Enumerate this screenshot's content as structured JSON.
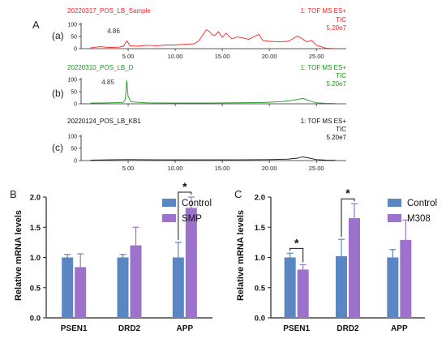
{
  "panel_a": {
    "letter": "A",
    "sublabels": [
      "(a)",
      "(b)",
      "(c)"
    ],
    "traces": [
      {
        "sample": "20220317_POS_LB_Sample",
        "mode": "1: TOF MS ES+",
        "detector": "TIC",
        "intensity": "5.20e7",
        "peak_label": "4.86",
        "color": "#ff2020"
      },
      {
        "sample": "20220310_POS_LB_D",
        "mode": "1: TOF MS ES+",
        "detector": "TIC",
        "intensity": "5.20e7",
        "peak_label": "4.85",
        "color": "#1a9a1a"
      },
      {
        "sample": "20220124_POS_LB_KB1",
        "mode": "1: TOF MS ES+",
        "detector": "TIC",
        "intensity": "5.20e7",
        "peak_label": "",
        "color": "#111111"
      }
    ]
  },
  "panel_b": {
    "letter": "B",
    "significance": "*",
    "colors": {
      "control": "#5a86c4",
      "treatment": "#9c72cc"
    }
  },
  "panel_c": {
    "letter": "C",
    "significance": "*",
    "colors": {
      "control": "#5a86c4",
      "treatment": "#9c72cc"
    }
  },
  "chart_data": [
    {
      "type": "line",
      "panel": "A(a)",
      "xlabel": "",
      "ylabel": "",
      "xlim": [
        0,
        28
      ],
      "ylim": [
        0,
        100
      ],
      "xticks": [
        "5.00",
        "10.00",
        "15.00",
        "20.00",
        "25.00"
      ],
      "yticks": [
        "0",
        "50",
        "100"
      ],
      "x": [
        1,
        2,
        3,
        4,
        4.5,
        4.86,
        5.2,
        6,
        7,
        8,
        9,
        10,
        11,
        12,
        12.5,
        13,
        13.3,
        13.6,
        13.9,
        14.2,
        14.6,
        15,
        15.4,
        16,
        16.6,
        17.2,
        17.8,
        18.5,
        18.9,
        19.3,
        20,
        21,
        22,
        23,
        23.5,
        24,
        24.5,
        25,
        25.5,
        26,
        27
      ],
      "y": [
        3,
        8,
        5,
        6,
        10,
        32,
        12,
        10,
        14,
        12,
        15,
        15,
        18,
        20,
        32,
        60,
        78,
        72,
        58,
        54,
        70,
        46,
        64,
        40,
        48,
        44,
        38,
        52,
        58,
        34,
        30,
        28,
        30,
        52,
        40,
        28,
        34,
        14,
        8,
        2,
        0
      ]
    },
    {
      "type": "line",
      "panel": "A(b)",
      "xlabel": "",
      "ylabel": "",
      "xlim": [
        0,
        28
      ],
      "ylim": [
        0,
        100
      ],
      "xticks": [],
      "yticks": [
        "0",
        "50",
        "100"
      ],
      "x": [
        1,
        3,
        4.5,
        4.7,
        4.85,
        5.0,
        5.3,
        7,
        10,
        13,
        16,
        19,
        21,
        22,
        23,
        23.6,
        24,
        24.5,
        25,
        26,
        27
      ],
      "y": [
        3,
        4,
        6,
        20,
        95,
        30,
        8,
        4,
        3,
        3,
        4,
        5,
        8,
        12,
        18,
        22,
        16,
        10,
        4,
        2,
        1
      ]
    },
    {
      "type": "line",
      "panel": "A(c)",
      "xlabel": "",
      "ylabel": "",
      "xlim": [
        0,
        28
      ],
      "ylim": [
        0,
        100
      ],
      "xticks": [
        "5.00",
        "10.00",
        "15.00",
        "20.00",
        "25.00"
      ],
      "yticks": [
        "0",
        "50",
        "100"
      ],
      "x": [
        1,
        3,
        5,
        8,
        11,
        14,
        17,
        20,
        22,
        23,
        23.5,
        24,
        24.5,
        25,
        26,
        27
      ],
      "y": [
        2,
        3,
        4,
        3,
        3,
        3,
        3,
        4,
        6,
        10,
        15,
        12,
        8,
        4,
        2,
        1
      ]
    },
    {
      "type": "bar",
      "panel": "B",
      "categories": [
        "PSEN1",
        "DRD2",
        "APP"
      ],
      "series": [
        {
          "name": "Control",
          "values": [
            1.0,
            1.0,
            1.0
          ],
          "errors": [
            0.05,
            0.05,
            0.25
          ]
        },
        {
          "name": "SMP",
          "values": [
            0.84,
            1.2,
            1.82
          ],
          "errors": [
            0.22,
            0.3,
            0.18
          ]
        }
      ],
      "xlabel": "",
      "ylabel": "Relative mRNA levels",
      "ylim": [
        0,
        2.0
      ],
      "yticks": [
        "0.0",
        "0.5",
        "1.0",
        "1.5",
        "2.0"
      ],
      "legend": "top-right"
    },
    {
      "type": "bar",
      "panel": "C",
      "categories": [
        "PSEN1",
        "DRD2",
        "APP"
      ],
      "series": [
        {
          "name": "Control",
          "values": [
            1.0,
            1.02,
            1.0
          ],
          "errors": [
            0.07,
            0.28,
            0.13
          ]
        },
        {
          "name": "M308",
          "values": [
            0.8,
            1.65,
            1.29
          ],
          "errors": [
            0.08,
            0.24,
            0.33
          ]
        }
      ],
      "xlabel": "",
      "ylabel": "Relative mRNA levels",
      "ylim": [
        0,
        2.0
      ],
      "yticks": [
        "0.0",
        "0.5",
        "1.0",
        "1.5",
        "2.0"
      ],
      "legend": "top-right"
    }
  ]
}
